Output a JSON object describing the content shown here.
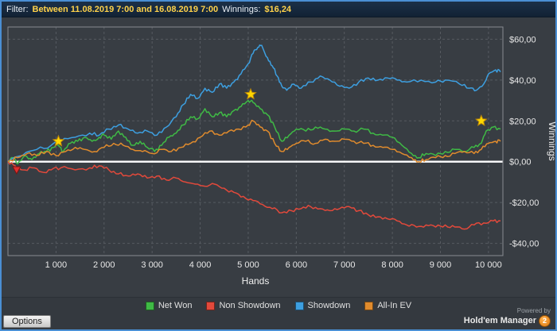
{
  "header": {
    "filter_label": "Filter:",
    "filter_range": "Between 11.08.2019 7:00 and 16.08.2019 7:00",
    "winnings_label": "Winnings:",
    "winnings_value": "$16,24",
    "accent_color": "#ffd24a"
  },
  "chart_data": {
    "type": "line",
    "title": "",
    "xlabel": "Hands",
    "ylabel": "Winnings",
    "xlim": [
      0,
      10300
    ],
    "ylim": [
      -46,
      66
    ],
    "grid": true,
    "legend_position": "bottom",
    "colors": {
      "background": "#383d43",
      "grid": "#565b61",
      "border": "#888c92",
      "zero_line": "#ffffff",
      "tick_text": "#e8e8e8"
    },
    "x_ticks": [
      {
        "v": 1000,
        "label": "1 000"
      },
      {
        "v": 2000,
        "label": "2 000"
      },
      {
        "v": 3000,
        "label": "3 000"
      },
      {
        "v": 4000,
        "label": "4 000"
      },
      {
        "v": 5000,
        "label": "5 000"
      },
      {
        "v": 6000,
        "label": "6 000"
      },
      {
        "v": 7000,
        "label": "7 000"
      },
      {
        "v": 8000,
        "label": "8 000"
      },
      {
        "v": 9000,
        "label": "9 000"
      },
      {
        "v": 10000,
        "label": "10 000"
      }
    ],
    "y_ticks": [
      {
        "v": 60,
        "label": "$60,00"
      },
      {
        "v": 40,
        "label": "$40,00"
      },
      {
        "v": 20,
        "label": "$20,00"
      },
      {
        "v": 0,
        "label": "$0,00"
      },
      {
        "v": -20,
        "label": "-$20,00"
      },
      {
        "v": -40,
        "label": "-$40,00"
      }
    ],
    "series": [
      {
        "name": "Net Won",
        "color": "#3fba45",
        "points": [
          [
            0,
            0
          ],
          [
            100,
            2
          ],
          [
            200,
            -1
          ],
          [
            350,
            3
          ],
          [
            500,
            1
          ],
          [
            650,
            4
          ],
          [
            800,
            5
          ],
          [
            950,
            7
          ],
          [
            1050,
            8
          ],
          [
            1150,
            5
          ],
          [
            1300,
            9
          ],
          [
            1450,
            10
          ],
          [
            1600,
            12
          ],
          [
            1750,
            10
          ],
          [
            1900,
            12
          ],
          [
            2000,
            13
          ],
          [
            2150,
            11
          ],
          [
            2300,
            15
          ],
          [
            2450,
            12
          ],
          [
            2600,
            8
          ],
          [
            2750,
            10
          ],
          [
            2900,
            7
          ],
          [
            3050,
            5
          ],
          [
            3200,
            8
          ],
          [
            3350,
            12
          ],
          [
            3500,
            14
          ],
          [
            3650,
            18
          ],
          [
            3800,
            22
          ],
          [
            3950,
            21
          ],
          [
            4100,
            26
          ],
          [
            4250,
            22
          ],
          [
            4400,
            24
          ],
          [
            4550,
            22
          ],
          [
            4700,
            25
          ],
          [
            4850,
            27
          ],
          [
            5000,
            30
          ],
          [
            5100,
            29
          ],
          [
            5250,
            26
          ],
          [
            5400,
            23
          ],
          [
            5550,
            17
          ],
          [
            5700,
            10
          ],
          [
            5850,
            13
          ],
          [
            6000,
            16
          ],
          [
            6200,
            15
          ],
          [
            6400,
            17
          ],
          [
            6600,
            16
          ],
          [
            6800,
            15
          ],
          [
            7000,
            16
          ],
          [
            7200,
            15
          ],
          [
            7400,
            16
          ],
          [
            7600,
            14
          ],
          [
            7800,
            13
          ],
          [
            8000,
            12
          ],
          [
            8200,
            8
          ],
          [
            8400,
            4
          ],
          [
            8550,
            2
          ],
          [
            8700,
            4
          ],
          [
            8900,
            3
          ],
          [
            9100,
            5
          ],
          [
            9300,
            6
          ],
          [
            9500,
            5
          ],
          [
            9700,
            7
          ],
          [
            9850,
            9
          ],
          [
            9950,
            15
          ],
          [
            10100,
            17
          ],
          [
            10250,
            16
          ]
        ]
      },
      {
        "name": "Non Showdown",
        "color": "#e2493b",
        "points": [
          [
            0,
            0
          ],
          [
            150,
            -2
          ],
          [
            300,
            -4
          ],
          [
            500,
            -3
          ],
          [
            700,
            -5
          ],
          [
            900,
            -4
          ],
          [
            1100,
            -3
          ],
          [
            1400,
            -4
          ],
          [
            1700,
            -3
          ],
          [
            1900,
            -2
          ],
          [
            2100,
            -4
          ],
          [
            2300,
            -6
          ],
          [
            2500,
            -7
          ],
          [
            2700,
            -6
          ],
          [
            2900,
            -8
          ],
          [
            3100,
            -7
          ],
          [
            3300,
            -9
          ],
          [
            3500,
            -8
          ],
          [
            3700,
            -10
          ],
          [
            3900,
            -11
          ],
          [
            4100,
            -12
          ],
          [
            4300,
            -11
          ],
          [
            4500,
            -13
          ],
          [
            4700,
            -15
          ],
          [
            4900,
            -17
          ],
          [
            5100,
            -19
          ],
          [
            5300,
            -21
          ],
          [
            5500,
            -23
          ],
          [
            5700,
            -25
          ],
          [
            5900,
            -24
          ],
          [
            6100,
            -23
          ],
          [
            6300,
            -22
          ],
          [
            6500,
            -23
          ],
          [
            6700,
            -24
          ],
          [
            6900,
            -23
          ],
          [
            7100,
            -22
          ],
          [
            7300,
            -24
          ],
          [
            7500,
            -26
          ],
          [
            7700,
            -27
          ],
          [
            7900,
            -28
          ],
          [
            8100,
            -29
          ],
          [
            8300,
            -31
          ],
          [
            8500,
            -32
          ],
          [
            8700,
            -31
          ],
          [
            8900,
            -32
          ],
          [
            9100,
            -31
          ],
          [
            9300,
            -32
          ],
          [
            9500,
            -33
          ],
          [
            9700,
            -31
          ],
          [
            9900,
            -30
          ],
          [
            10100,
            -29
          ],
          [
            10250,
            -29
          ]
        ]
      },
      {
        "name": "Showdown",
        "color": "#3d9fe0",
        "points": [
          [
            0,
            0
          ],
          [
            300,
            3
          ],
          [
            600,
            6
          ],
          [
            900,
            8
          ],
          [
            1100,
            10
          ],
          [
            1400,
            12
          ],
          [
            1700,
            14
          ],
          [
            1900,
            13
          ],
          [
            2100,
            16
          ],
          [
            2300,
            18
          ],
          [
            2500,
            16
          ],
          [
            2700,
            14
          ],
          [
            2900,
            15
          ],
          [
            3100,
            13
          ],
          [
            3300,
            17
          ],
          [
            3500,
            22
          ],
          [
            3650,
            28
          ],
          [
            3800,
            33
          ],
          [
            3950,
            31
          ],
          [
            4100,
            36
          ],
          [
            4250,
            34
          ],
          [
            4400,
            38
          ],
          [
            4550,
            36
          ],
          [
            4700,
            39
          ],
          [
            4850,
            43
          ],
          [
            5000,
            48
          ],
          [
            5100,
            53
          ],
          [
            5200,
            56
          ],
          [
            5280,
            57
          ],
          [
            5400,
            51
          ],
          [
            5500,
            47
          ],
          [
            5600,
            42
          ],
          [
            5700,
            37
          ],
          [
            5800,
            35
          ],
          [
            5950,
            38
          ],
          [
            6100,
            36
          ],
          [
            6300,
            39
          ],
          [
            6500,
            42
          ],
          [
            6700,
            40
          ],
          [
            6900,
            37
          ],
          [
            7100,
            36
          ],
          [
            7300,
            39
          ],
          [
            7500,
            41
          ],
          [
            7700,
            40
          ],
          [
            7900,
            41
          ],
          [
            8100,
            40
          ],
          [
            8300,
            39
          ],
          [
            8600,
            40
          ],
          [
            8900,
            39
          ],
          [
            9100,
            40
          ],
          [
            9400,
            38
          ],
          [
            9600,
            36
          ],
          [
            9750,
            35
          ],
          [
            9900,
            38
          ],
          [
            10000,
            43
          ],
          [
            10150,
            45
          ],
          [
            10250,
            44
          ]
        ]
      },
      {
        "name": "All-In EV",
        "color": "#e08b2d",
        "points": [
          [
            0,
            0
          ],
          [
            200,
            2
          ],
          [
            400,
            4
          ],
          [
            600,
            3
          ],
          [
            800,
            5
          ],
          [
            1000,
            3
          ],
          [
            1200,
            5
          ],
          [
            1400,
            7
          ],
          [
            1600,
            6
          ],
          [
            1800,
            5
          ],
          [
            2000,
            7
          ],
          [
            2200,
            9
          ],
          [
            2400,
            8
          ],
          [
            2600,
            6
          ],
          [
            2800,
            5
          ],
          [
            3000,
            4
          ],
          [
            3200,
            6
          ],
          [
            3400,
            5
          ],
          [
            3600,
            7
          ],
          [
            3800,
            9
          ],
          [
            4000,
            12
          ],
          [
            4200,
            15
          ],
          [
            4400,
            13
          ],
          [
            4600,
            15
          ],
          [
            4800,
            16
          ],
          [
            5000,
            18
          ],
          [
            5100,
            20
          ],
          [
            5250,
            17
          ],
          [
            5400,
            15
          ],
          [
            5550,
            9
          ],
          [
            5700,
            5
          ],
          [
            5850,
            7
          ],
          [
            6000,
            9
          ],
          [
            6200,
            10
          ],
          [
            6400,
            9
          ],
          [
            6600,
            11
          ],
          [
            6800,
            10
          ],
          [
            7000,
            11
          ],
          [
            7200,
            10
          ],
          [
            7400,
            9
          ],
          [
            7600,
            8
          ],
          [
            7800,
            7
          ],
          [
            8000,
            6
          ],
          [
            8200,
            4
          ],
          [
            8400,
            2
          ],
          [
            8550,
            0
          ],
          [
            8700,
            1
          ],
          [
            8900,
            2
          ],
          [
            9100,
            3
          ],
          [
            9300,
            4
          ],
          [
            9500,
            5
          ],
          [
            9700,
            4
          ],
          [
            9850,
            6
          ],
          [
            10000,
            9
          ],
          [
            10150,
            10
          ],
          [
            10250,
            10
          ]
        ]
      }
    ],
    "markers": {
      "stars": [
        [
          1050,
          10
        ],
        [
          5050,
          33
        ],
        [
          9850,
          20
        ]
      ],
      "star_color": "#ffd700",
      "star_stroke": "#b8860b",
      "triangle": [
        180,
        -4
      ],
      "triangle_color": "#dd2f2f"
    }
  },
  "footer": {
    "options_label": "Options",
    "powered_by": "Powered by",
    "brand": "Hold'em Manager",
    "brand_badge": "2"
  }
}
